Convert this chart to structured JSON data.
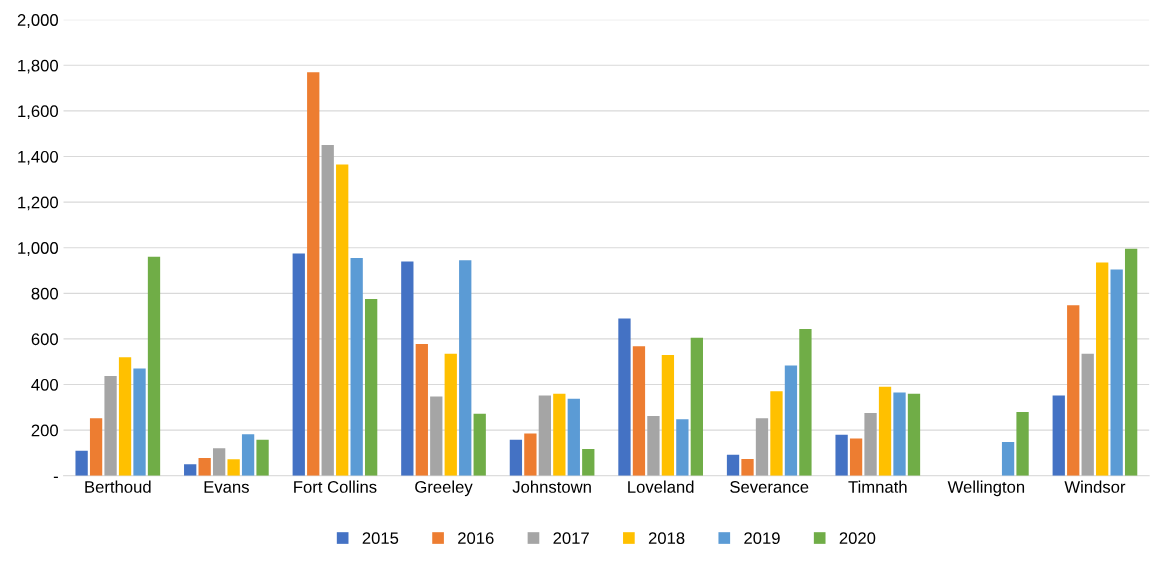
{
  "chart_data": {
    "type": "bar",
    "categories": [
      "Berthoud",
      "Evans",
      "Fort Collins",
      "Greeley",
      "Johnstown",
      "Loveland",
      "Severance",
      "Timnath",
      "Wellington",
      "Windsor"
    ],
    "series": [
      {
        "name": "2015",
        "color": "#4472c4",
        "values": [
          110,
          50,
          975,
          940,
          158,
          690,
          92,
          180,
          null,
          352
        ]
      },
      {
        "name": "2016",
        "color": "#ed7d31",
        "values": [
          252,
          78,
          1770,
          578,
          185,
          568,
          73,
          163,
          null,
          748
        ]
      },
      {
        "name": "2017",
        "color": "#a5a5a5",
        "values": [
          437,
          120,
          1450,
          348,
          352,
          262,
          252,
          275,
          null,
          535
        ]
      },
      {
        "name": "2018",
        "color": "#ffc000",
        "values": [
          520,
          72,
          1365,
          535,
          360,
          530,
          370,
          390,
          null,
          935
        ]
      },
      {
        "name": "2019",
        "color": "#5b9bd5",
        "values": [
          470,
          182,
          955,
          945,
          338,
          248,
          483,
          365,
          148,
          905
        ]
      },
      {
        "name": "2020",
        "color": "#70ad47",
        "values": [
          960,
          158,
          775,
          272,
          117,
          605,
          643,
          360,
          280,
          995
        ]
      }
    ],
    "ylim": [
      0,
      2000
    ],
    "yticks": [
      {
        "value": 0,
        "label": "-"
      },
      {
        "value": 200,
        "label": "200"
      },
      {
        "value": 400,
        "label": "400"
      },
      {
        "value": 600,
        "label": "600"
      },
      {
        "value": 800,
        "label": "800"
      },
      {
        "value": 1000,
        "label": "1,000"
      },
      {
        "value": 1200,
        "label": "1,200"
      },
      {
        "value": 1400,
        "label": "1,400"
      },
      {
        "value": 1600,
        "label": "1,600"
      },
      {
        "value": 1800,
        "label": "1,800"
      },
      {
        "value": 2000,
        "label": "2,000"
      }
    ],
    "grid": "y",
    "legend": "bottom"
  }
}
